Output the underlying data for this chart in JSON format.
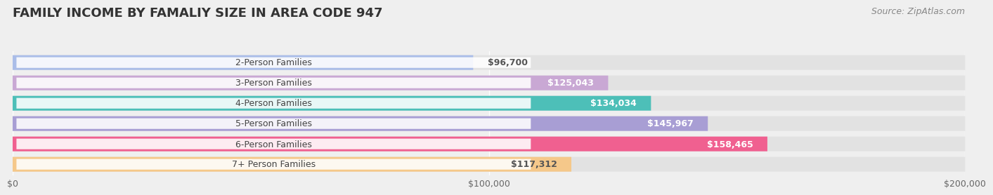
{
  "title": "FAMILY INCOME BY FAMALIY SIZE IN AREA CODE 947",
  "source": "Source: ZipAtlas.com",
  "categories": [
    "2-Person Families",
    "3-Person Families",
    "4-Person Families",
    "5-Person Families",
    "6-Person Families",
    "7+ Person Families"
  ],
  "values": [
    96700,
    125043,
    134034,
    145967,
    158465,
    117312
  ],
  "bar_colors": [
    "#aabde8",
    "#c9a8d4",
    "#4dbfb8",
    "#a89ed4",
    "#f06090",
    "#f5c88a"
  ],
  "bar_label_colors": [
    "#555555",
    "#ffffff",
    "#ffffff",
    "#ffffff",
    "#ffffff",
    "#555555"
  ],
  "value_labels": [
    "$96,700",
    "$125,043",
    "$134,034",
    "$145,967",
    "$158,465",
    "$117,312"
  ],
  "xlim": [
    0,
    200000
  ],
  "xticks": [
    0,
    100000,
    200000
  ],
  "xticklabels": [
    "$0",
    "$100,000",
    "$200,000"
  ],
  "background_color": "#efefef",
  "bar_bg_color": "#e2e2e2",
  "title_fontsize": 13,
  "source_fontsize": 9,
  "label_fontsize": 9,
  "tick_fontsize": 9
}
